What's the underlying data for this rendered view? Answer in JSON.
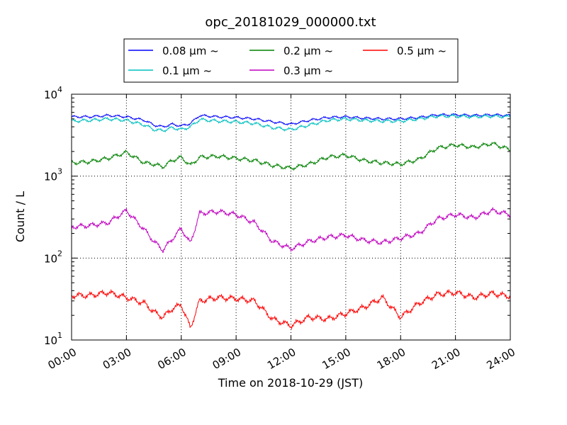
{
  "chart_data": {
    "type": "line",
    "title": "opc_20181029_000000.txt",
    "xlabel": "Time on 2018-10-29 (JST)",
    "ylabel": "Count / L",
    "yscale": "log",
    "ylim": [
      10,
      10000
    ],
    "xlim": [
      "00:00",
      "24:00"
    ],
    "grid": true,
    "legend_position": "top-center",
    "x_ticks": [
      "00:00",
      "03:00",
      "06:00",
      "09:00",
      "12:00",
      "15:00",
      "18:00",
      "21:00",
      "24:00"
    ],
    "y_ticks": [
      {
        "base": "10",
        "exp": "1"
      },
      {
        "base": "10",
        "exp": "2"
      },
      {
        "base": "10",
        "exp": "3"
      },
      {
        "base": "10",
        "exp": "4"
      }
    ],
    "x": [
      "00:00",
      "01:00",
      "02:00",
      "03:00",
      "04:00",
      "04:30",
      "05:00",
      "05:30",
      "06:00",
      "06:30",
      "07:00",
      "08:00",
      "09:00",
      "10:00",
      "11:00",
      "12:00",
      "13:00",
      "14:00",
      "15:00",
      "16:00",
      "17:00",
      "18:00",
      "19:00",
      "20:00",
      "21:00",
      "22:00",
      "23:00",
      "24:00"
    ],
    "series": [
      {
        "name": "0.08 μm ~",
        "color": "#0000ff",
        "values": [
          5300,
          5300,
          5500,
          5300,
          4800,
          4200,
          4000,
          4300,
          4100,
          4400,
          5500,
          5300,
          5200,
          5000,
          4600,
          4300,
          4800,
          5200,
          5300,
          5100,
          5000,
          5000,
          5200,
          5600,
          5600,
          5500,
          5600,
          5500
        ]
      },
      {
        "name": "0.1 μm ~",
        "color": "#00bfbf",
        "values": [
          4700,
          4800,
          5000,
          4800,
          4200,
          3700,
          3600,
          3900,
          3700,
          4000,
          4900,
          4700,
          4600,
          4400,
          3900,
          3700,
          4200,
          4800,
          5000,
          4800,
          4700,
          4700,
          5000,
          5400,
          5400,
          5300,
          5400,
          5300
        ]
      },
      {
        "name": "0.2 μm ~",
        "color": "#008000",
        "values": [
          1450,
          1500,
          1650,
          1950,
          1450,
          1400,
          1300,
          1550,
          1700,
          1350,
          1700,
          1750,
          1650,
          1550,
          1350,
          1250,
          1400,
          1700,
          1800,
          1550,
          1450,
          1400,
          1600,
          2200,
          2400,
          2250,
          2500,
          2100
        ]
      },
      {
        "name": "0.3 μm ~",
        "color": "#bf00bf",
        "values": [
          240,
          250,
          270,
          380,
          220,
          160,
          125,
          170,
          230,
          150,
          350,
          370,
          340,
          270,
          160,
          130,
          160,
          180,
          190,
          165,
          155,
          175,
          200,
          300,
          340,
          310,
          380,
          340
        ]
      },
      {
        "name": "0.5 μm ~",
        "color": "#ff0000",
        "values": [
          35,
          35,
          38,
          33,
          28,
          22,
          19,
          24,
          27,
          14,
          30,
          33,
          32,
          30,
          18,
          15,
          19,
          18,
          21,
          25,
          33,
          19,
          28,
          36,
          38,
          33,
          37,
          34
        ]
      }
    ]
  }
}
